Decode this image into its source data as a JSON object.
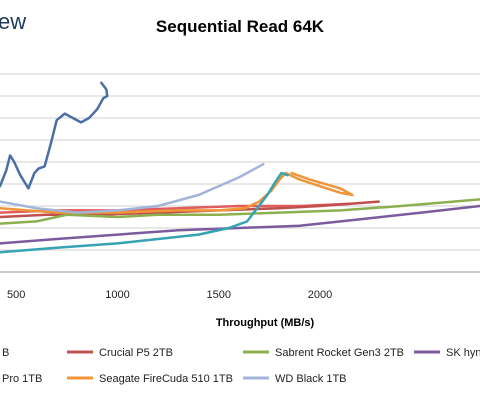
{
  "logo": {
    "text": "ew"
  },
  "chart_data": {
    "type": "line",
    "title": "Sequential Read 64K",
    "xlabel": "Throughput (MB/s)",
    "ylabel": "",
    "xlim": [
      420,
      2790
    ],
    "ylim": [
      0,
      10
    ],
    "grid": {
      "horizontal": true,
      "vertical": false
    },
    "x_ticks": [
      500,
      1000,
      1500,
      2000
    ],
    "y_ticks": [
      0,
      1,
      2,
      3,
      4,
      5,
      6,
      7,
      8,
      9
    ],
    "legend_position": "bottom",
    "series": [
      {
        "name": "",
        "legend_label": "B",
        "color": "#e15d5d",
        "points": [
          [
            420,
            2.7
          ],
          [
            700,
            2.8
          ],
          [
            1000,
            2.8
          ],
          [
            1300,
            2.9
          ],
          [
            1600,
            3.0
          ],
          [
            1900,
            3.0
          ],
          [
            2150,
            3.1
          ]
        ]
      },
      {
        "name": "",
        "legend_label": "Pro 1TB",
        "color": "#4b6fa5",
        "points": [
          [
            420,
            3.9
          ],
          [
            450,
            4.6
          ],
          [
            470,
            5.3
          ],
          [
            490,
            5.0
          ],
          [
            520,
            4.4
          ],
          [
            560,
            3.8
          ],
          [
            590,
            4.5
          ],
          [
            610,
            4.7
          ],
          [
            640,
            4.8
          ],
          [
            670,
            5.8
          ],
          [
            700,
            6.9
          ],
          [
            740,
            7.2
          ],
          [
            780,
            7.0
          ],
          [
            820,
            6.8
          ],
          [
            860,
            7.0
          ],
          [
            900,
            7.4
          ],
          [
            930,
            7.9
          ],
          [
            950,
            8.0
          ],
          [
            945,
            8.3
          ],
          [
            920,
            8.6
          ]
        ]
      },
      {
        "name": "Crucial P5 2TB",
        "legend_label": "Crucial P5 2TB",
        "color": "#c0504d",
        "points": [
          [
            420,
            2.5
          ],
          [
            650,
            2.6
          ],
          [
            900,
            2.6
          ],
          [
            1200,
            2.7
          ],
          [
            1500,
            2.8
          ],
          [
            1800,
            2.9
          ],
          [
            2000,
            3.0
          ],
          [
            2150,
            3.1
          ],
          [
            2290,
            3.2
          ]
        ]
      },
      {
        "name": "Sabrent Rocket Gen3 2TB",
        "legend_label": "Sabrent Rocket Gen3 2TB",
        "color": "#8db04e",
        "points": [
          [
            420,
            2.2
          ],
          [
            600,
            2.3
          ],
          [
            750,
            2.6
          ],
          [
            1000,
            2.5
          ],
          [
            1200,
            2.6
          ],
          [
            1500,
            2.6
          ],
          [
            1800,
            2.7
          ],
          [
            2100,
            2.8
          ],
          [
            2400,
            3.0
          ],
          [
            2790,
            3.3
          ]
        ]
      },
      {
        "name": "SK hynix",
        "legend_label": "SK hyni",
        "color": "#7b5b9e",
        "points": [
          [
            420,
            1.3
          ],
          [
            700,
            1.5
          ],
          [
            1000,
            1.7
          ],
          [
            1300,
            1.9
          ],
          [
            1600,
            2.0
          ],
          [
            1900,
            2.1
          ],
          [
            2200,
            2.4
          ],
          [
            2500,
            2.7
          ],
          [
            2790,
            3.0
          ]
        ]
      },
      {
        "name": "Seagate FireCuda 510 1TB",
        "legend_label": "Seagate FireCuda 510 1TB",
        "color": "#f09538",
        "points": [
          [
            420,
            2.9
          ],
          [
            700,
            2.7
          ],
          [
            1000,
            2.7
          ],
          [
            1300,
            2.8
          ],
          [
            1500,
            2.8
          ],
          [
            1630,
            2.9
          ],
          [
            1700,
            3.2
          ],
          [
            1760,
            3.7
          ],
          [
            1800,
            4.2
          ],
          [
            1830,
            4.5
          ],
          [
            1900,
            4.2
          ],
          [
            2000,
            3.9
          ],
          [
            2100,
            3.6
          ],
          [
            2160,
            3.5
          ],
          [
            2100,
            3.8
          ],
          [
            1950,
            4.2
          ],
          [
            1860,
            4.5
          ]
        ]
      },
      {
        "name": "",
        "legend_label": "",
        "color": "#35a3b4",
        "points": [
          [
            420,
            0.9
          ],
          [
            700,
            1.1
          ],
          [
            1000,
            1.3
          ],
          [
            1200,
            1.5
          ],
          [
            1400,
            1.7
          ],
          [
            1550,
            2.0
          ],
          [
            1640,
            2.3
          ],
          [
            1690,
            2.9
          ],
          [
            1740,
            3.5
          ],
          [
            1780,
            4.1
          ],
          [
            1810,
            4.5
          ],
          [
            1840,
            4.4
          ]
        ]
      },
      {
        "name": "WD Black 1TB",
        "legend_label": "WD Black 1TB",
        "color": "#a2b5d8",
        "points": [
          [
            420,
            3.2
          ],
          [
            600,
            2.9
          ],
          [
            800,
            2.7
          ],
          [
            1000,
            2.8
          ],
          [
            1200,
            3.0
          ],
          [
            1400,
            3.5
          ],
          [
            1600,
            4.3
          ],
          [
            1720,
            4.9
          ]
        ]
      }
    ],
    "legend": [
      {
        "label": "B",
        "color": "#e15d5d"
      },
      {
        "label": "Crucial P5 2TB",
        "color": "#c0504d"
      },
      {
        "label": "Sabrent Rocket Gen3 2TB",
        "color": "#8db04e"
      },
      {
        "label": "SK hyni",
        "color": "#7b5b9e"
      },
      {
        "label": "Pro 1TB",
        "color": "#4b6fa5"
      },
      {
        "label": "Seagate FireCuda 510 1TB",
        "color": "#f09538"
      },
      {
        "label": "WD Black 1TB",
        "color": "#a2b5d8"
      }
    ]
  }
}
